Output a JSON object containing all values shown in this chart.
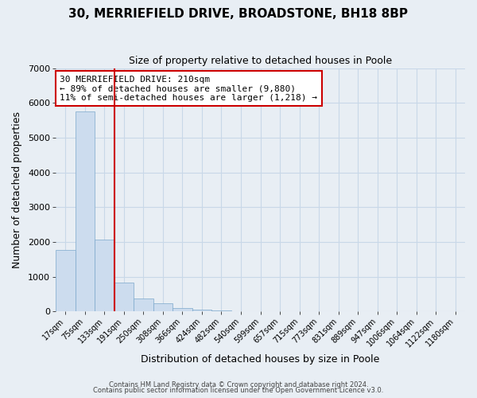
{
  "title": "30, MERRIEFIELD DRIVE, BROADSTONE, BH18 8BP",
  "subtitle": "Size of property relative to detached houses in Poole",
  "xlabel": "Distribution of detached houses by size in Poole",
  "ylabel": "Number of detached properties",
  "bar_labels": [
    "17sqm",
    "75sqm",
    "133sqm",
    "191sqm",
    "250sqm",
    "308sqm",
    "366sqm",
    "424sqm",
    "482sqm",
    "540sqm",
    "599sqm",
    "657sqm",
    "715sqm",
    "773sqm",
    "831sqm",
    "889sqm",
    "947sqm",
    "1006sqm",
    "1064sqm",
    "1122sqm",
    "1180sqm"
  ],
  "bar_values": [
    1780,
    5750,
    2060,
    840,
    370,
    230,
    110,
    55,
    30,
    15,
    8,
    4,
    2,
    0,
    0,
    0,
    0,
    0,
    0,
    0,
    0
  ],
  "bar_color": "#ccdcee",
  "bar_edge_color": "#7ca8cc",
  "vline_color": "#cc0000",
  "annotation_text": "30 MERRIEFIELD DRIVE: 210sqm\n← 89% of detached houses are smaller (9,880)\n11% of semi-detached houses are larger (1,218) →",
  "annotation_box_color": "#ffffff",
  "annotation_box_edge": "#cc0000",
  "ylim": [
    0,
    7000
  ],
  "yticks": [
    0,
    1000,
    2000,
    3000,
    4000,
    5000,
    6000,
    7000
  ],
  "grid_color": "#c8d8e8",
  "bg_color": "#e8eef4",
  "footer1": "Contains HM Land Registry data © Crown copyright and database right 2024.",
  "footer2": "Contains public sector information licensed under the Open Government Licence v3.0."
}
